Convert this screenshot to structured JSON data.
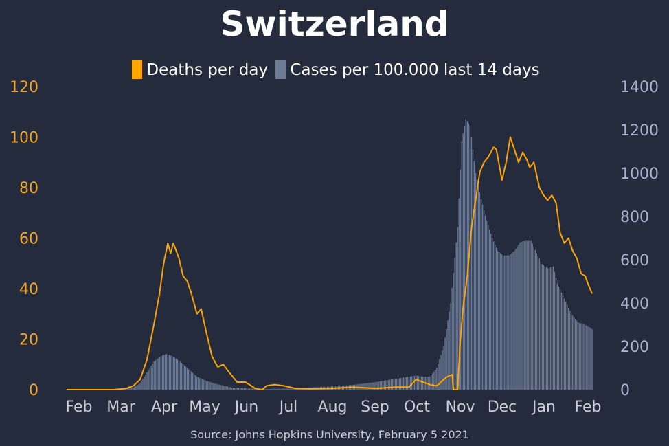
{
  "title": "Switzerland",
  "source": "Source: Johns Hopkins University, February 5 2021",
  "legend": {
    "deaths": "Deaths per day",
    "cases": "Cases per 100.000 last 14 days"
  },
  "colors": {
    "background": "#232b3d",
    "deaths": "#ffa500",
    "cases": "#6c7a95",
    "left_axis": "#f5a623",
    "right_axis": "#a8b4cc",
    "x_axis": "#c8cdd6"
  },
  "chart_data": {
    "type": "bar+line",
    "title": "Switzerland",
    "x_tick_labels": [
      "Feb",
      "Mar",
      "Apr",
      "May",
      "Jun",
      "Jul",
      "Aug",
      "Sep",
      "Oct",
      "Nov",
      "Dec",
      "Jan",
      "Feb"
    ],
    "x_range": [
      "2020-01-22",
      "2021-02-04"
    ],
    "left_axis": {
      "min": 0,
      "max": 120,
      "ticks": [
        0,
        20,
        40,
        60,
        80,
        100,
        120
      ]
    },
    "right_axis": {
      "min": 0,
      "max": 1400,
      "ticks": [
        0,
        200,
        400,
        600,
        800,
        1000,
        1200,
        1400
      ]
    },
    "grid": false,
    "legend_position": "top",
    "series": [
      {
        "name": "Deaths per day",
        "type": "line",
        "axis": "left",
        "points": [
          [
            "2020-01-22",
            0
          ],
          [
            "2020-02-25",
            0
          ],
          [
            "2020-03-05",
            0.5
          ],
          [
            "2020-03-10",
            1.5
          ],
          [
            "2020-03-15",
            4
          ],
          [
            "2020-03-20",
            12
          ],
          [
            "2020-03-25",
            26
          ],
          [
            "2020-03-29",
            38
          ],
          [
            "2020-04-01",
            50
          ],
          [
            "2020-04-04",
            58
          ],
          [
            "2020-04-06",
            54
          ],
          [
            "2020-04-08",
            58
          ],
          [
            "2020-04-10",
            55
          ],
          [
            "2020-04-12",
            52
          ],
          [
            "2020-04-15",
            45
          ],
          [
            "2020-04-18",
            43
          ],
          [
            "2020-04-21",
            38
          ],
          [
            "2020-04-25",
            30
          ],
          [
            "2020-04-28",
            32
          ],
          [
            "2020-05-02",
            22
          ],
          [
            "2020-05-06",
            13
          ],
          [
            "2020-05-10",
            9
          ],
          [
            "2020-05-14",
            10
          ],
          [
            "2020-05-18",
            7
          ],
          [
            "2020-05-24",
            3
          ],
          [
            "2020-05-30",
            3
          ],
          [
            "2020-06-06",
            0.5
          ],
          [
            "2020-06-11",
            0
          ],
          [
            "2020-06-14",
            1.5
          ],
          [
            "2020-06-20",
            2
          ],
          [
            "2020-06-27",
            1.5
          ],
          [
            "2020-07-05",
            0.5
          ],
          [
            "2020-07-15",
            0.3
          ],
          [
            "2020-08-01",
            0.5
          ],
          [
            "2020-08-15",
            1
          ],
          [
            "2020-09-01",
            0.5
          ],
          [
            "2020-09-15",
            1
          ],
          [
            "2020-09-25",
            1
          ],
          [
            "2020-09-30",
            4
          ],
          [
            "2020-10-05",
            3
          ],
          [
            "2020-10-10",
            2
          ],
          [
            "2020-10-15",
            1.5
          ],
          [
            "2020-10-18",
            3
          ],
          [
            "2020-10-22",
            5
          ],
          [
            "2020-10-26",
            6
          ],
          [
            "2020-10-27",
            0
          ],
          [
            "2020-10-30",
            0
          ],
          [
            "2020-11-01",
            20
          ],
          [
            "2020-11-03",
            33
          ],
          [
            "2020-11-06",
            45
          ],
          [
            "2020-11-09",
            64
          ],
          [
            "2020-11-12",
            75
          ],
          [
            "2020-11-15",
            86
          ],
          [
            "2020-11-18",
            90
          ],
          [
            "2020-11-21",
            92
          ],
          [
            "2020-11-25",
            96
          ],
          [
            "2020-11-27",
            95
          ],
          [
            "2020-12-01",
            83
          ],
          [
            "2020-12-04",
            90
          ],
          [
            "2020-12-07",
            100
          ],
          [
            "2020-12-10",
            95
          ],
          [
            "2020-12-13",
            90
          ],
          [
            "2020-12-16",
            94
          ],
          [
            "2020-12-19",
            91
          ],
          [
            "2020-12-21",
            88
          ],
          [
            "2020-12-24",
            90
          ],
          [
            "2020-12-28",
            80
          ],
          [
            "2020-12-31",
            77
          ],
          [
            "2021-01-03",
            75
          ],
          [
            "2021-01-06",
            77
          ],
          [
            "2021-01-09",
            74
          ],
          [
            "2021-01-12",
            62
          ],
          [
            "2021-01-15",
            58
          ],
          [
            "2021-01-18",
            60
          ],
          [
            "2021-01-21",
            55
          ],
          [
            "2021-01-24",
            52
          ],
          [
            "2021-01-27",
            46
          ],
          [
            "2021-01-30",
            45
          ],
          [
            "2021-02-01",
            42
          ],
          [
            "2021-02-04",
            38
          ]
        ]
      },
      {
        "name": "Cases per 100.000 last 14 days",
        "type": "bar",
        "axis": "right",
        "points": [
          [
            "2020-01-22",
            0
          ],
          [
            "2020-03-01",
            0
          ],
          [
            "2020-03-10",
            10
          ],
          [
            "2020-03-15",
            30
          ],
          [
            "2020-03-20",
            80
          ],
          [
            "2020-03-25",
            130
          ],
          [
            "2020-03-30",
            155
          ],
          [
            "2020-04-03",
            165
          ],
          [
            "2020-04-07",
            155
          ],
          [
            "2020-04-12",
            135
          ],
          [
            "2020-04-18",
            100
          ],
          [
            "2020-04-25",
            60
          ],
          [
            "2020-05-02",
            40
          ],
          [
            "2020-05-10",
            25
          ],
          [
            "2020-05-20",
            10
          ],
          [
            "2020-06-01",
            5
          ],
          [
            "2020-06-15",
            3
          ],
          [
            "2020-07-01",
            5
          ],
          [
            "2020-07-15",
            10
          ],
          [
            "2020-08-01",
            15
          ],
          [
            "2020-08-15",
            22
          ],
          [
            "2020-09-01",
            35
          ],
          [
            "2020-09-15",
            50
          ],
          [
            "2020-09-30",
            65
          ],
          [
            "2020-10-05",
            60
          ],
          [
            "2020-10-10",
            60
          ],
          [
            "2020-10-15",
            100
          ],
          [
            "2020-10-20",
            200
          ],
          [
            "2020-10-25",
            400
          ],
          [
            "2020-10-30",
            750
          ],
          [
            "2020-11-02",
            1150
          ],
          [
            "2020-11-05",
            1250
          ],
          [
            "2020-11-08",
            1220
          ],
          [
            "2020-11-12",
            1000
          ],
          [
            "2020-11-16",
            880
          ],
          [
            "2020-11-20",
            780
          ],
          [
            "2020-11-24",
            700
          ],
          [
            "2020-11-28",
            640
          ],
          [
            "2020-12-02",
            620
          ],
          [
            "2020-12-06",
            620
          ],
          [
            "2020-12-10",
            640
          ],
          [
            "2020-12-14",
            680
          ],
          [
            "2020-12-18",
            690
          ],
          [
            "2020-12-22",
            690
          ],
          [
            "2020-12-26",
            630
          ],
          [
            "2020-12-30",
            580
          ],
          [
            "2021-01-03",
            560
          ],
          [
            "2021-01-07",
            570
          ],
          [
            "2021-01-10",
            490
          ],
          [
            "2021-01-15",
            420
          ],
          [
            "2021-01-20",
            350
          ],
          [
            "2021-01-25",
            310
          ],
          [
            "2021-01-30",
            300
          ],
          [
            "2021-02-04",
            280
          ]
        ]
      }
    ]
  }
}
